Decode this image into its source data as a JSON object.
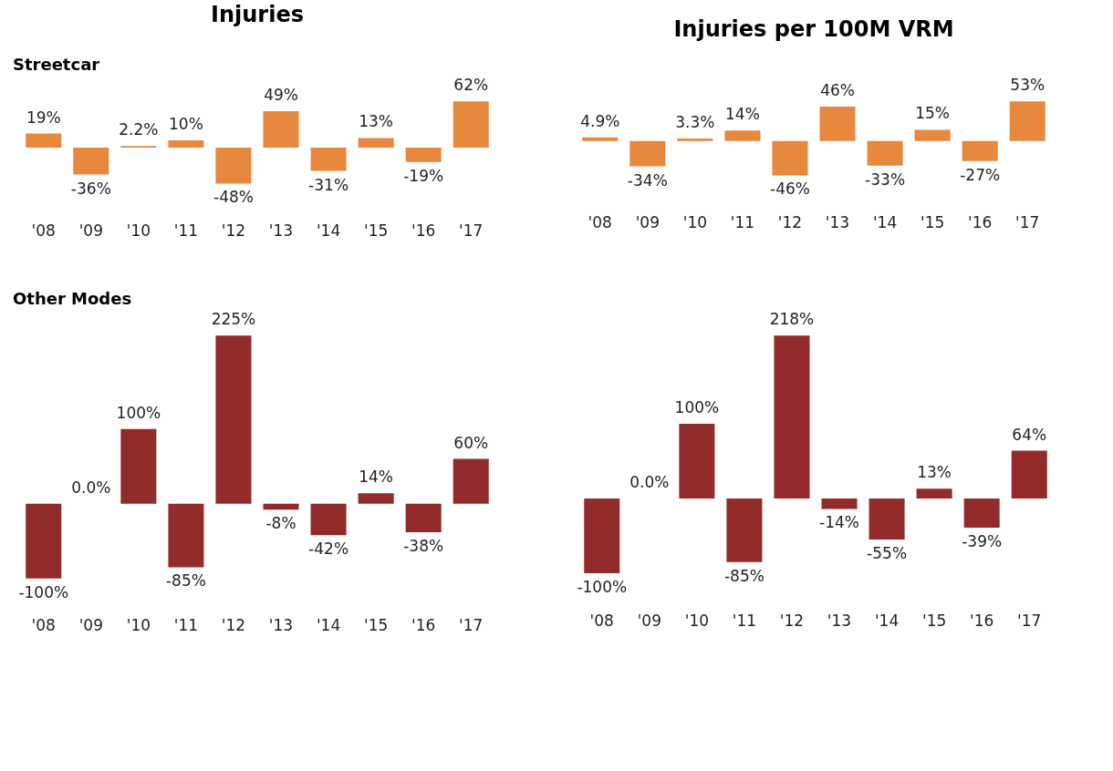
{
  "chart_data": [
    {
      "type": "bar",
      "title": "Injuries",
      "subtitle": "Streetcar",
      "categories": [
        "'08",
        "'09",
        "'10",
        "'11",
        "'12",
        "'13",
        "'14",
        "'15",
        "'16",
        "'17"
      ],
      "values": [
        19,
        -36,
        2.2,
        10,
        -48,
        49,
        -31,
        13,
        -19,
        62
      ],
      "value_labels": [
        "19%",
        "-36%",
        "2.2%",
        "10%",
        "-48%",
        "49%",
        "-31%",
        "13%",
        "-19%",
        "62%"
      ],
      "color": "#e8873e"
    },
    {
      "type": "bar",
      "title": "Injuries per 100M VRM",
      "categories": [
        "'08",
        "'09",
        "'10",
        "'11",
        "'12",
        "'13",
        "'14",
        "'15",
        "'16",
        "'17"
      ],
      "values": [
        4.9,
        -34,
        3.3,
        14,
        -46,
        46,
        -33,
        15,
        -27,
        53
      ],
      "value_labels": [
        "4.9%",
        "-34%",
        "3.3%",
        "14%",
        "-46%",
        "46%",
        "-33%",
        "15%",
        "-27%",
        "53%"
      ],
      "color": "#e8873e"
    },
    {
      "type": "bar",
      "subtitle": "Other Modes",
      "categories": [
        "'08",
        "'09",
        "'10",
        "'11",
        "'12",
        "'13",
        "'14",
        "'15",
        "'16",
        "'17"
      ],
      "values": [
        -100,
        0.0,
        100,
        -85,
        225,
        -8,
        -42,
        14,
        -38,
        60
      ],
      "value_labels": [
        "-100%",
        "0.0%",
        "100%",
        "-85%",
        "225%",
        "-8%",
        "-42%",
        "14%",
        "-38%",
        "60%"
      ],
      "color": "#922b2a"
    },
    {
      "type": "bar",
      "categories": [
        "'08",
        "'09",
        "'10",
        "'11",
        "'12",
        "'13",
        "'14",
        "'15",
        "'16",
        "'17"
      ],
      "values": [
        -100,
        0.0,
        100,
        -85,
        218,
        -14,
        -55,
        13,
        -39,
        64
      ],
      "value_labels": [
        "-100%",
        "0.0%",
        "100%",
        "-85%",
        "218%",
        "-14%",
        "-55%",
        "13%",
        "-39%",
        "64%"
      ],
      "color": "#922b2a"
    }
  ]
}
